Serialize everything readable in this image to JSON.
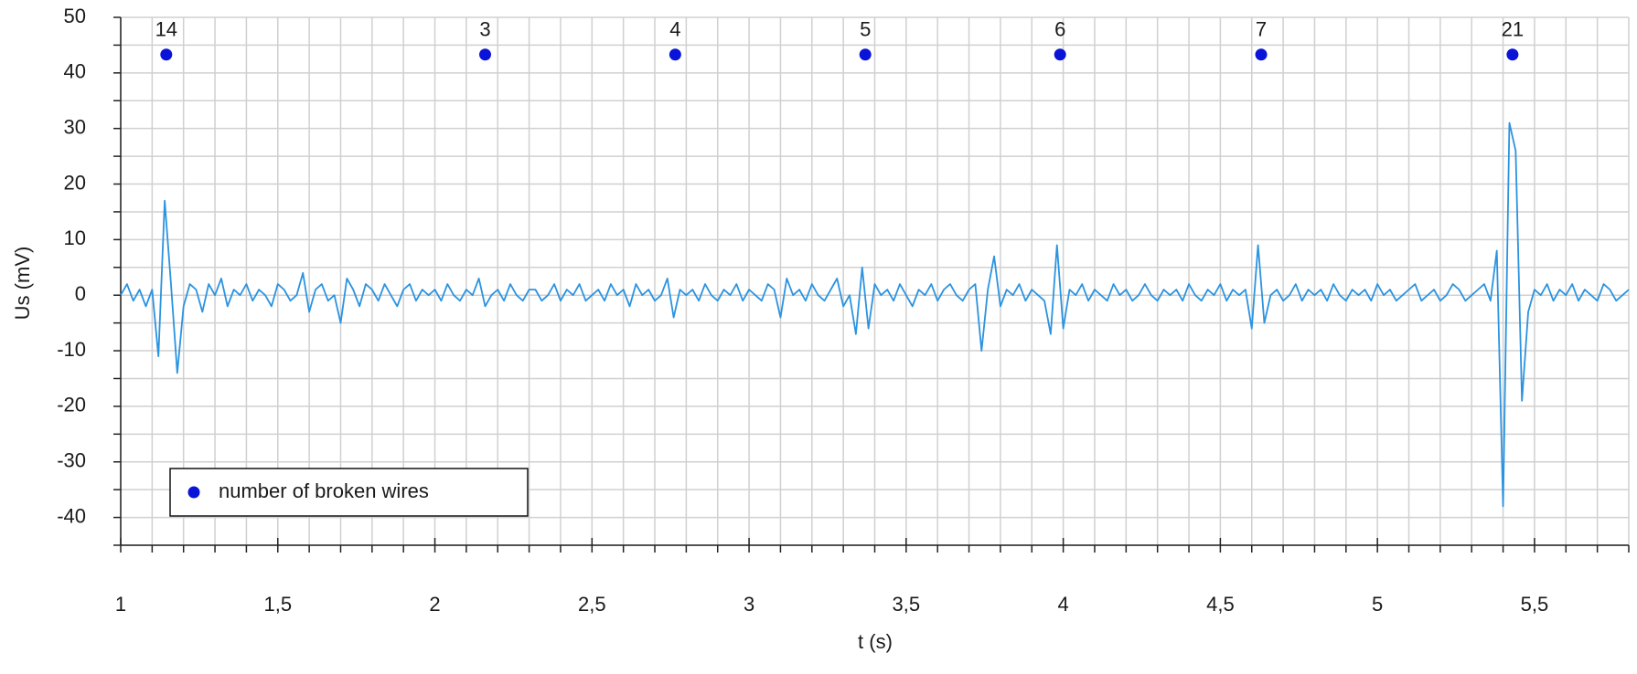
{
  "chart_data": {
    "type": "line",
    "xlabel": "t (s)",
    "ylabel": "Us (mV)",
    "xlim": [
      1,
      5.8
    ],
    "ylim": [
      -45,
      50
    ],
    "xticks": [
      1,
      {
        "value": 1.5,
        "label": "1,5"
      },
      2,
      {
        "value": 2.5,
        "label": "2,5"
      },
      3,
      {
        "value": 3.5,
        "label": "3,5"
      },
      4,
      {
        "value": 4.5,
        "label": "4,5"
      },
      5,
      {
        "value": 5.5,
        "label": "5,5"
      }
    ],
    "yticks": [
      -40,
      -30,
      -20,
      -10,
      0,
      10,
      20,
      30,
      40,
      50
    ],
    "xminorticks": [
      1.1,
      1.2,
      1.3,
      1.4,
      1.6,
      1.7,
      1.8,
      1.9,
      2.1,
      2.2,
      2.3,
      2.4,
      2.6,
      2.7,
      2.8,
      2.9,
      3.1,
      3.2,
      3.3,
      3.4,
      3.6,
      3.7,
      3.8,
      3.9,
      4.1,
      4.2,
      4.3,
      4.4,
      4.6,
      4.7,
      4.8,
      4.9,
      5.1,
      5.2,
      5.3,
      5.4,
      5.6,
      5.7,
      5.8
    ],
    "yminorticks": [
      -45,
      -35,
      -25,
      -15,
      -5,
      5,
      15,
      25,
      35,
      45
    ],
    "grid": true,
    "legend": "lower left",
    "x": [
      1,
      1.02,
      1.04,
      1.06,
      1.08,
      1.1,
      1.12,
      1.14,
      1.16,
      1.18,
      1.2,
      1.22,
      1.24,
      1.26,
      1.28,
      1.3,
      1.32,
      1.34,
      1.36,
      1.38,
      1.4,
      1.42,
      1.44,
      1.46,
      1.48,
      1.5,
      1.52,
      1.54,
      1.56,
      1.58,
      1.6,
      1.62,
      1.64,
      1.66,
      1.68,
      1.7,
      1.72,
      1.74,
      1.76,
      1.78,
      1.8,
      1.82,
      1.84,
      1.86,
      1.88,
      1.9,
      1.92,
      1.94,
      1.96,
      1.98,
      2,
      2.02,
      2.04,
      2.06,
      2.08,
      2.1,
      2.12,
      2.14,
      2.16,
      2.18,
      2.2,
      2.22,
      2.24,
      2.26,
      2.28,
      2.3,
      2.32,
      2.34,
      2.36,
      2.38,
      2.4,
      2.42,
      2.44,
      2.46,
      2.48,
      2.5,
      2.52,
      2.54,
      2.56,
      2.58,
      2.6,
      2.62,
      2.64,
      2.66,
      2.68,
      2.7,
      2.72,
      2.74,
      2.76,
      2.78,
      2.8,
      2.82,
      2.84,
      2.86,
      2.88,
      2.9,
      2.92,
      2.94,
      2.96,
      2.98,
      3,
      3.02,
      3.04,
      3.06,
      3.08,
      3.1,
      3.12,
      3.14,
      3.16,
      3.18,
      3.2,
      3.22,
      3.24,
      3.26,
      3.28,
      3.3,
      3.32,
      3.34,
      3.36,
      3.38,
      3.4,
      3.42,
      3.44,
      3.46,
      3.48,
      3.5,
      3.52,
      3.54,
      3.56,
      3.58,
      3.6,
      3.62,
      3.64,
      3.66,
      3.68,
      3.7,
      3.72,
      3.74,
      3.76,
      3.78,
      3.8,
      3.82,
      3.84,
      3.86,
      3.88,
      3.9,
      3.92,
      3.94,
      3.96,
      3.98,
      4,
      4.02,
      4.04,
      4.06,
      4.08,
      4.1,
      4.12,
      4.14,
      4.16,
      4.18,
      4.2,
      4.22,
      4.24,
      4.26,
      4.28,
      4.3,
      4.32,
      4.34,
      4.36,
      4.38,
      4.4,
      4.42,
      4.44,
      4.46,
      4.48,
      4.5,
      4.52,
      4.54,
      4.56,
      4.58,
      4.6,
      4.62,
      4.64,
      4.66,
      4.68,
      4.7,
      4.72,
      4.74,
      4.76,
      4.78,
      4.8,
      4.82,
      4.84,
      4.86,
      4.88,
      4.9,
      4.92,
      4.94,
      4.96,
      4.98,
      5,
      5.02,
      5.04,
      5.06,
      5.08,
      5.1,
      5.12,
      5.14,
      5.16,
      5.18,
      5.2,
      5.22,
      5.24,
      5.26,
      5.28,
      5.3,
      5.32,
      5.34,
      5.36,
      5.38,
      5.4,
      5.42,
      5.44,
      5.46,
      5.48,
      5.5,
      5.52,
      5.54,
      5.56,
      5.58,
      5.6,
      5.62,
      5.64,
      5.66,
      5.68,
      5.7,
      5.72,
      5.74,
      5.76,
      5.78,
      5.8
    ],
    "series": [
      {
        "type": "line",
        "color": "#2b93e0",
        "values": [
          0,
          2,
          -1,
          1,
          -2,
          1,
          -11,
          17,
          2,
          -14,
          -2,
          2,
          1,
          -3,
          2,
          0,
          3,
          -2,
          1,
          0,
          2,
          -1,
          1,
          0,
          -2,
          2,
          1,
          -1,
          0,
          4,
          -3,
          1,
          2,
          -1,
          0,
          -5,
          3,
          1,
          -2,
          2,
          1,
          -1,
          2,
          0,
          -2,
          1,
          2,
          -1,
          1,
          0,
          1,
          -1,
          2,
          0,
          -1,
          1,
          0,
          3,
          -2,
          0,
          1,
          -1,
          2,
          0,
          -1,
          1,
          1,
          -1,
          0,
          2,
          -1,
          1,
          0,
          2,
          -1,
          0,
          1,
          -1,
          2,
          0,
          1,
          -2,
          2,
          0,
          1,
          -1,
          0,
          3,
          -4,
          1,
          0,
          1,
          -1,
          2,
          0,
          -1,
          1,
          0,
          2,
          -1,
          1,
          0,
          -1,
          2,
          1,
          -4,
          3,
          0,
          1,
          -1,
          2,
          0,
          -1,
          1,
          3,
          -2,
          0,
          -7,
          5,
          -6,
          2,
          0,
          1,
          -1,
          2,
          0,
          -2,
          1,
          0,
          2,
          -1,
          1,
          2,
          0,
          -1,
          1,
          2,
          -10,
          1,
          7,
          -2,
          1,
          0,
          2,
          -1,
          1,
          0,
          -1,
          -7,
          9,
          -6,
          1,
          0,
          2,
          -1,
          1,
          0,
          -1,
          2,
          0,
          1,
          -1,
          0,
          2,
          0,
          -1,
          1,
          0,
          1,
          -1,
          2,
          0,
          -1,
          1,
          0,
          2,
          -1,
          1,
          0,
          1,
          -6,
          9,
          -5,
          0,
          1,
          -1,
          0,
          2,
          -1,
          1,
          0,
          1,
          -1,
          2,
          0,
          -1,
          1,
          0,
          1,
          -1,
          2,
          0,
          1,
          -1,
          0,
          1,
          2,
          -1,
          0,
          1,
          -1,
          0,
          2,
          1,
          -1,
          0,
          1,
          2,
          -1,
          8,
          -38,
          31,
          26,
          -19,
          -3,
          1,
          0,
          2,
          -1,
          1,
          0,
          2,
          -1,
          1,
          0,
          -1,
          2,
          1,
          -1,
          0,
          1
        ]
      },
      {
        "type": "scatter",
        "name": "number of broken wires",
        "color": "#0a14d8",
        "x": [
          1.145,
          2.16,
          2.765,
          3.37,
          3.99,
          4.63,
          5.43
        ],
        "values": [
          43.3,
          43.3,
          43.3,
          43.3,
          43.3,
          43.3,
          43.3
        ],
        "labels": [
          "14",
          "3",
          "4",
          "5",
          "6",
          "7",
          "21"
        ]
      }
    ]
  }
}
